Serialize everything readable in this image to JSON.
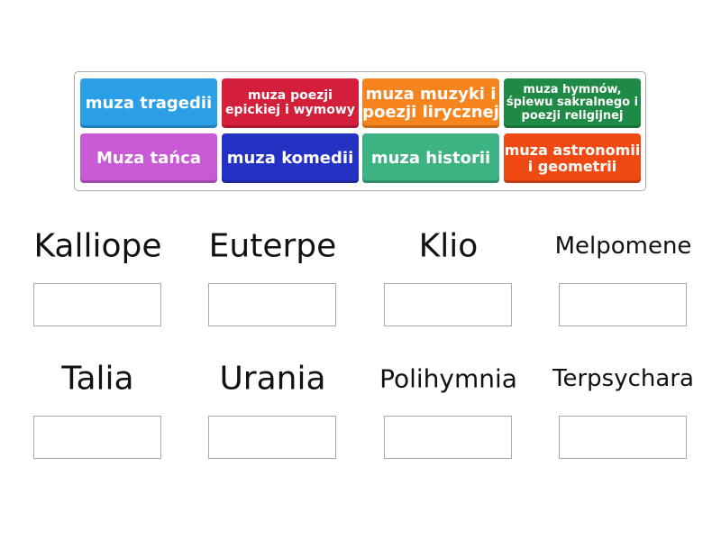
{
  "tiles": [
    {
      "label": "muza tragedii",
      "color": "#2a9fe6"
    },
    {
      "label": "muza poezji epickiej i wymowy",
      "color": "#d41f3a"
    },
    {
      "label": "muza muzyki i poezji lirycznej",
      "color": "#f5841f"
    },
    {
      "label": "muza hymnów, śpiewu sakralnego i poezji religijnej",
      "color": "#1f8a45"
    },
    {
      "label": "Muza tańca",
      "color": "#c95ad6"
    },
    {
      "label": "muza komedii",
      "color": "#2432c4"
    },
    {
      "label": "muza historii",
      "color": "#3db384"
    },
    {
      "label": "muza astronomii i geometrii",
      "color": "#f04a14"
    }
  ],
  "targets": [
    "Kalliope",
    "Euterpe",
    "Klio",
    "Melpomene",
    "Talia",
    "Urania",
    "Polihymnia",
    "Terpsychara"
  ]
}
